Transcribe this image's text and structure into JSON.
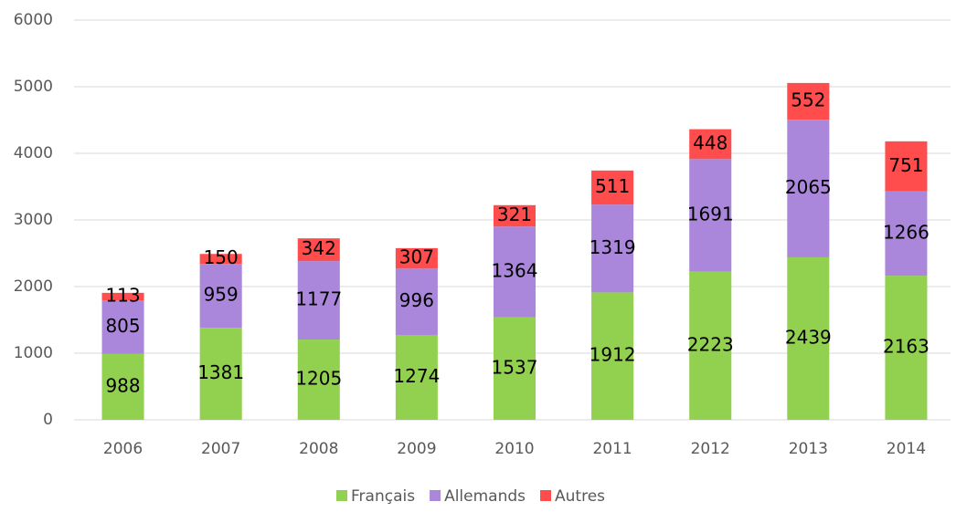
{
  "chart_data": {
    "type": "bar",
    "stacked": true,
    "categories": [
      "2006",
      "2007",
      "2008",
      "2009",
      "2010",
      "2011",
      "2012",
      "2013",
      "2014"
    ],
    "series": [
      {
        "name": "Français",
        "color": "#92d050",
        "values": [
          988,
          1381,
          1205,
          1274,
          1537,
          1912,
          2223,
          2439,
          2163
        ]
      },
      {
        "name": "Allemands",
        "color": "#ab87db",
        "values": [
          805,
          959,
          1177,
          996,
          1364,
          1319,
          1691,
          2065,
          1266
        ]
      },
      {
        "name": "Autres",
        "color": "#ff4d4d",
        "values": [
          113,
          150,
          342,
          307,
          321,
          511,
          448,
          552,
          751
        ]
      }
    ],
    "ylim": [
      0,
      6000
    ],
    "yticks": [
      0,
      1000,
      2000,
      3000,
      4000,
      5000,
      6000
    ],
    "grid": true,
    "legend": "bottom"
  }
}
